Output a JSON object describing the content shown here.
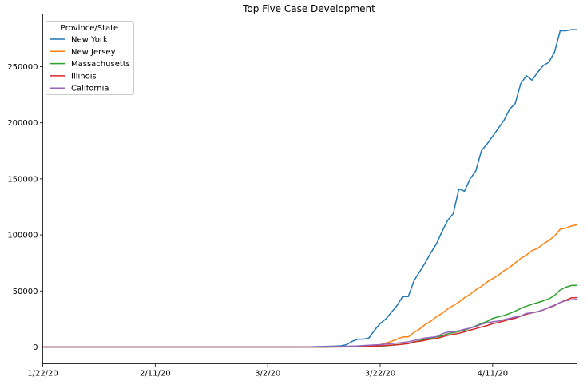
{
  "chart_data": {
    "type": "line",
    "title": "Top Five Case Development",
    "xlabel": "",
    "ylabel": "",
    "x_tick_labels": [
      "1/22/20",
      "2/11/20",
      "3/2/20",
      "3/22/20",
      "4/11/20"
    ],
    "x_ticks_day": [
      0,
      20,
      40,
      60,
      80
    ],
    "xlim_day": [
      0,
      95
    ],
    "ylim": [
      -15000,
      297000
    ],
    "y_ticks": [
      0,
      50000,
      100000,
      150000,
      200000,
      250000
    ],
    "y_tick_labels": [
      "0",
      "50000",
      "100000",
      "150000",
      "200000",
      "250000"
    ],
    "grid": false,
    "legend": {
      "title": "Province/State",
      "placement": "top-left"
    },
    "series": [
      {
        "name": "New York",
        "color": "#1f77b4",
        "points": [
          [
            0,
            0
          ],
          [
            40,
            0
          ],
          [
            48,
            200
          ],
          [
            52,
            800
          ],
          [
            53,
            1000
          ],
          [
            54,
            2000
          ],
          [
            55,
            5000
          ],
          [
            56,
            7000
          ],
          [
            57,
            7000
          ],
          [
            58,
            8000
          ],
          [
            59,
            15000
          ],
          [
            60,
            21000
          ],
          [
            61,
            25000
          ],
          [
            62,
            31000
          ],
          [
            63,
            37000
          ],
          [
            64,
            45000
          ],
          [
            65,
            45000
          ],
          [
            66,
            59000
          ],
          [
            67,
            67000
          ],
          [
            68,
            75000
          ],
          [
            69,
            84000
          ],
          [
            70,
            92000
          ],
          [
            71,
            103000
          ],
          [
            72,
            113000
          ],
          [
            73,
            119000
          ],
          [
            74,
            141000
          ],
          [
            75,
            139000
          ],
          [
            76,
            150000
          ],
          [
            77,
            157000
          ],
          [
            78,
            175000
          ],
          [
            79,
            181000
          ],
          [
            80,
            188000
          ],
          [
            81,
            195000
          ],
          [
            82,
            202000
          ],
          [
            83,
            212000
          ],
          [
            84,
            217000
          ],
          [
            85,
            235000
          ],
          [
            86,
            242000
          ],
          [
            87,
            238000
          ],
          [
            88,
            245000
          ],
          [
            89,
            251000
          ],
          [
            90,
            254000
          ],
          [
            91,
            263000
          ],
          [
            92,
            282000
          ],
          [
            93,
            282000
          ],
          [
            94,
            283000
          ],
          [
            95,
            283000
          ]
        ]
      },
      {
        "name": "New Jersey",
        "color": "#ff7f0e",
        "points": [
          [
            0,
            0
          ],
          [
            45,
            0
          ],
          [
            55,
            300
          ],
          [
            57,
            700
          ],
          [
            59,
            1300
          ],
          [
            60,
            2000
          ],
          [
            61,
            3500
          ],
          [
            62,
            5000
          ],
          [
            63,
            7000
          ],
          [
            64,
            9000
          ],
          [
            65,
            9000
          ],
          [
            66,
            13000
          ],
          [
            67,
            16000
          ],
          [
            68,
            20000
          ],
          [
            69,
            23000
          ],
          [
            70,
            27000
          ],
          [
            71,
            30000
          ],
          [
            72,
            34000
          ],
          [
            73,
            37000
          ],
          [
            74,
            40000
          ],
          [
            75,
            44000
          ],
          [
            76,
            47000
          ],
          [
            77,
            51000
          ],
          [
            78,
            54000
          ],
          [
            79,
            58000
          ],
          [
            80,
            61000
          ],
          [
            81,
            64000
          ],
          [
            82,
            68000
          ],
          [
            83,
            71000
          ],
          [
            84,
            75000
          ],
          [
            85,
            79000
          ],
          [
            86,
            82000
          ],
          [
            87,
            86000
          ],
          [
            88,
            88000
          ],
          [
            89,
            92000
          ],
          [
            90,
            95000
          ],
          [
            91,
            99000
          ],
          [
            92,
            105000
          ],
          [
            93,
            106000
          ],
          [
            94,
            108000
          ],
          [
            95,
            109000
          ]
        ]
      },
      {
        "name": "Massachusetts",
        "color": "#2ca02c",
        "points": [
          [
            0,
            0
          ],
          [
            50,
            0
          ],
          [
            56,
            200
          ],
          [
            60,
            800
          ],
          [
            62,
            1500
          ],
          [
            64,
            2500
          ],
          [
            65,
            3200
          ],
          [
            66,
            4300
          ],
          [
            67,
            5700
          ],
          [
            68,
            7000
          ],
          [
            69,
            7800
          ],
          [
            70,
            8900
          ],
          [
            71,
            10000
          ],
          [
            72,
            11700
          ],
          [
            73,
            12800
          ],
          [
            74,
            13800
          ],
          [
            75,
            15000
          ],
          [
            76,
            16800
          ],
          [
            77,
            18900
          ],
          [
            78,
            20900
          ],
          [
            79,
            22800
          ],
          [
            80,
            25500
          ],
          [
            81,
            26900
          ],
          [
            82,
            28100
          ],
          [
            83,
            29900
          ],
          [
            84,
            32000
          ],
          [
            85,
            34400
          ],
          [
            86,
            36400
          ],
          [
            87,
            38100
          ],
          [
            88,
            39600
          ],
          [
            89,
            41200
          ],
          [
            90,
            42900
          ],
          [
            91,
            46000
          ],
          [
            92,
            50900
          ],
          [
            93,
            53300
          ],
          [
            94,
            54900
          ],
          [
            95,
            55000
          ]
        ]
      },
      {
        "name": "Illinois",
        "color": "#d62728",
        "points": [
          [
            0,
            0
          ],
          [
            50,
            0
          ],
          [
            56,
            200
          ],
          [
            59,
            800
          ],
          [
            61,
            1300
          ],
          [
            63,
            2000
          ],
          [
            65,
            3000
          ],
          [
            66,
            4600
          ],
          [
            67,
            5100
          ],
          [
            68,
            6000
          ],
          [
            69,
            7000
          ],
          [
            70,
            7600
          ],
          [
            71,
            8900
          ],
          [
            72,
            10400
          ],
          [
            73,
            11300
          ],
          [
            74,
            12200
          ],
          [
            75,
            13500
          ],
          [
            76,
            15000
          ],
          [
            77,
            16400
          ],
          [
            78,
            17800
          ],
          [
            79,
            19100
          ],
          [
            80,
            20800
          ],
          [
            81,
            21800
          ],
          [
            82,
            23200
          ],
          [
            83,
            24600
          ],
          [
            84,
            25700
          ],
          [
            85,
            27500
          ],
          [
            86,
            29200
          ],
          [
            87,
            30400
          ],
          [
            88,
            31500
          ],
          [
            89,
            33100
          ],
          [
            90,
            35100
          ],
          [
            91,
            36900
          ],
          [
            92,
            39700
          ],
          [
            93,
            41800
          ],
          [
            94,
            43900
          ],
          [
            95,
            44000
          ]
        ]
      },
      {
        "name": "California",
        "color": "#9467bd",
        "points": [
          [
            0,
            0
          ],
          [
            47,
            0
          ],
          [
            50,
            300
          ],
          [
            53,
            500
          ],
          [
            56,
            900
          ],
          [
            58,
            1600
          ],
          [
            60,
            2100
          ],
          [
            62,
            3000
          ],
          [
            64,
            4000
          ],
          [
            65,
            4700
          ],
          [
            66,
            5800
          ],
          [
            67,
            7000
          ],
          [
            68,
            8100
          ],
          [
            69,
            8600
          ],
          [
            70,
            9200
          ],
          [
            71,
            11700
          ],
          [
            72,
            13300
          ],
          [
            73,
            13500
          ],
          [
            74,
            14500
          ],
          [
            75,
            15800
          ],
          [
            76,
            16900
          ],
          [
            77,
            18300
          ],
          [
            78,
            20200
          ],
          [
            79,
            21700
          ],
          [
            80,
            22500
          ],
          [
            81,
            23100
          ],
          [
            82,
            24400
          ],
          [
            83,
            25500
          ],
          [
            84,
            26700
          ],
          [
            85,
            27700
          ],
          [
            86,
            30000
          ],
          [
            87,
            30500
          ],
          [
            88,
            31600
          ],
          [
            89,
            33200
          ],
          [
            90,
            35400
          ],
          [
            91,
            37400
          ],
          [
            92,
            39600
          ],
          [
            93,
            41300
          ],
          [
            94,
            42200
          ],
          [
            95,
            42500
          ]
        ]
      }
    ]
  }
}
